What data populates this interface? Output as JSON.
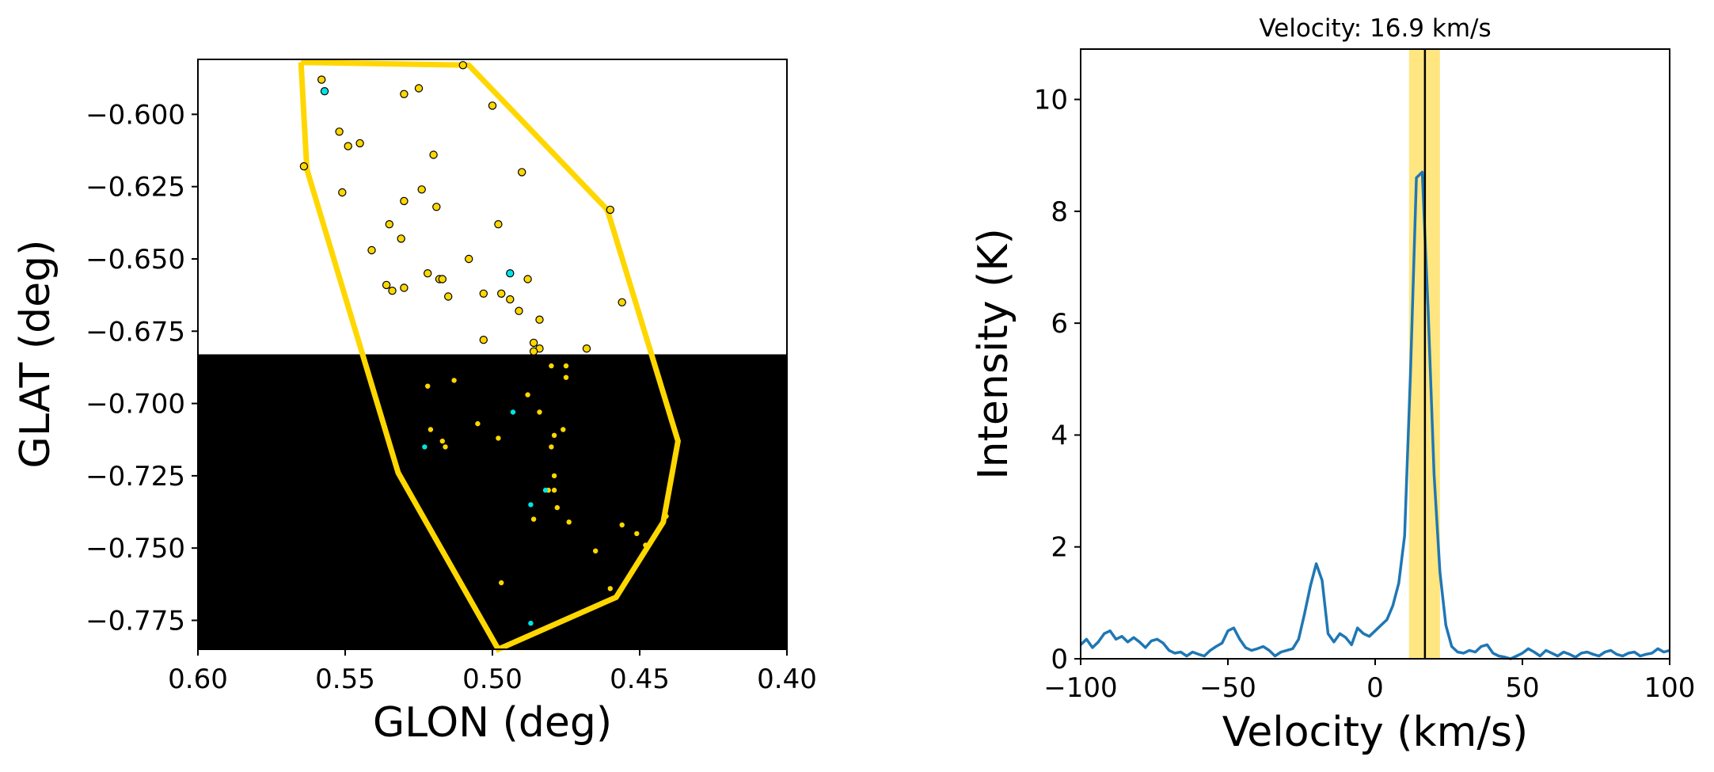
{
  "chart_data": [
    {
      "type": "scatter",
      "xlabel": "GLON (deg)",
      "ylabel": "GLAT (deg)",
      "xlim": [
        0.6,
        0.4
      ],
      "ylim": [
        -0.785,
        -0.581
      ],
      "x_ticks": [
        "0.60",
        "0.55",
        "0.50",
        "0.45",
        "0.40"
      ],
      "x_tick_values": [
        0.6,
        0.55,
        0.5,
        0.45,
        0.4
      ],
      "y_ticks": [
        "−0.600",
        "−0.625",
        "−0.650",
        "−0.675",
        "−0.700",
        "−0.725",
        "−0.750",
        "−0.775"
      ],
      "y_tick_values": [
        -0.6,
        -0.625,
        -0.65,
        -0.675,
        -0.7,
        -0.725,
        -0.75,
        -0.775
      ],
      "image_background": {
        "dark_region_ylim": [
          -0.785,
          -0.683
        ],
        "dark_color": "#000000"
      },
      "polygon": {
        "color": "#ffd700",
        "points": [
          [
            0.565,
            -0.582
          ],
          [
            0.508,
            -0.583
          ],
          [
            0.461,
            -0.633
          ],
          [
            0.437,
            -0.713
          ],
          [
            0.442,
            -0.741
          ],
          [
            0.458,
            -0.767
          ],
          [
            0.498,
            -0.785
          ],
          [
            0.532,
            -0.724
          ],
          [
            0.563,
            -0.619
          ],
          [
            0.565,
            -0.582
          ]
        ]
      },
      "series": [
        {
          "color": "#ffd700",
          "points": [
            [
              0.558,
              -0.588
            ],
            [
              0.53,
              -0.593
            ],
            [
              0.525,
              -0.591
            ],
            [
              0.51,
              -0.583
            ],
            [
              0.5,
              -0.597
            ],
            [
              0.552,
              -0.606
            ],
            [
              0.549,
              -0.611
            ],
            [
              0.545,
              -0.61
            ],
            [
              0.52,
              -0.614
            ],
            [
              0.564,
              -0.618
            ],
            [
              0.49,
              -0.62
            ],
            [
              0.551,
              -0.627
            ],
            [
              0.53,
              -0.63
            ],
            [
              0.524,
              -0.626
            ],
            [
              0.519,
              -0.632
            ],
            [
              0.46,
              -0.633
            ],
            [
              0.535,
              -0.638
            ],
            [
              0.498,
              -0.638
            ],
            [
              0.531,
              -0.643
            ],
            [
              0.541,
              -0.647
            ],
            [
              0.508,
              -0.65
            ],
            [
              0.522,
              -0.655
            ],
            [
              0.518,
              -0.657
            ],
            [
              0.517,
              -0.657
            ],
            [
              0.488,
              -0.657
            ],
            [
              0.536,
              -0.659
            ],
            [
              0.534,
              -0.661
            ],
            [
              0.53,
              -0.66
            ],
            [
              0.515,
              -0.663
            ],
            [
              0.503,
              -0.662
            ],
            [
              0.497,
              -0.662
            ],
            [
              0.494,
              -0.664
            ],
            [
              0.491,
              -0.668
            ],
            [
              0.456,
              -0.665
            ],
            [
              0.484,
              -0.671
            ],
            [
              0.503,
              -0.678
            ],
            [
              0.486,
              -0.679
            ],
            [
              0.484,
              -0.681
            ],
            [
              0.486,
              -0.682
            ],
            [
              0.468,
              -0.681
            ],
            [
              0.48,
              -0.687
            ],
            [
              0.475,
              -0.687
            ],
            [
              0.475,
              -0.691
            ],
            [
              0.488,
              -0.697
            ],
            [
              0.522,
              -0.694
            ],
            [
              0.513,
              -0.692
            ],
            [
              0.484,
              -0.703
            ],
            [
              0.505,
              -0.707
            ],
            [
              0.498,
              -0.712
            ],
            [
              0.521,
              -0.709
            ],
            [
              0.517,
              -0.713
            ],
            [
              0.516,
              -0.715
            ],
            [
              0.479,
              -0.711
            ],
            [
              0.476,
              -0.709
            ],
            [
              0.48,
              -0.715
            ],
            [
              0.479,
              -0.725
            ],
            [
              0.481,
              -0.73
            ],
            [
              0.479,
              -0.73
            ],
            [
              0.478,
              -0.736
            ],
            [
              0.486,
              -0.74
            ],
            [
              0.474,
              -0.741
            ],
            [
              0.456,
              -0.742
            ],
            [
              0.451,
              -0.745
            ],
            [
              0.448,
              -0.749
            ],
            [
              0.441,
              -0.739
            ],
            [
              0.465,
              -0.751
            ],
            [
              0.46,
              -0.764
            ],
            [
              0.497,
              -0.762
            ]
          ]
        },
        {
          "color": "#00e5e5",
          "points": [
            [
              0.557,
              -0.592
            ],
            [
              0.494,
              -0.655
            ],
            [
              0.493,
              -0.703
            ],
            [
              0.523,
              -0.715
            ],
            [
              0.482,
              -0.73
            ],
            [
              0.487,
              -0.735
            ],
            [
              0.487,
              -0.776
            ]
          ]
        }
      ]
    },
    {
      "type": "line",
      "title": "Velocity: 16.9 km/s",
      "xlabel": "Velocity (km/s)",
      "ylabel": "Intensity (K)",
      "xlim": [
        -100,
        100
      ],
      "ylim": [
        0,
        10.9
      ],
      "x_ticks": [
        "−100",
        "−50",
        "0",
        "50",
        "100"
      ],
      "x_tick_values": [
        -100,
        -50,
        0,
        50,
        100
      ],
      "y_ticks": [
        "0",
        "2",
        "4",
        "6",
        "8",
        "10"
      ],
      "y_tick_values": [
        0,
        2,
        4,
        6,
        8,
        10
      ],
      "highlight_band": {
        "x": [
          11.5,
          22.0
        ],
        "color": "#ffe680"
      },
      "marker_line": {
        "x": 16.9,
        "color": "#000000"
      },
      "series": [
        {
          "color": "#1f77b4",
          "x": [
            -100,
            -98,
            -96,
            -94,
            -92,
            -90,
            -88,
            -86,
            -84,
            -82,
            -80,
            -78,
            -76,
            -74,
            -72,
            -70,
            -68,
            -66,
            -64,
            -62,
            -60,
            -58,
            -56,
            -54,
            -52,
            -50,
            -48,
            -46,
            -44,
            -42,
            -40,
            -38,
            -36,
            -34,
            -32,
            -30,
            -28,
            -26,
            -24,
            -22,
            -20,
            -18,
            -16,
            -14,
            -12,
            -10,
            -8,
            -6,
            -4,
            -2,
            0,
            2,
            4,
            6,
            8,
            10,
            12,
            14,
            16,
            18,
            20,
            22,
            24,
            26,
            28,
            30,
            32,
            34,
            36,
            38,
            40,
            42,
            44,
            46,
            48,
            50,
            52,
            54,
            56,
            58,
            60,
            62,
            64,
            66,
            68,
            70,
            72,
            74,
            76,
            78,
            80,
            82,
            84,
            86,
            88,
            90,
            92,
            94,
            96,
            98,
            100
          ],
          "y": [
            0.25,
            0.35,
            0.2,
            0.3,
            0.45,
            0.5,
            0.35,
            0.4,
            0.3,
            0.38,
            0.3,
            0.2,
            0.32,
            0.35,
            0.28,
            0.15,
            0.1,
            0.12,
            0.05,
            0.12,
            0.08,
            0.05,
            0.15,
            0.22,
            0.28,
            0.5,
            0.55,
            0.35,
            0.2,
            0.15,
            0.18,
            0.22,
            0.15,
            0.05,
            0.12,
            0.15,
            0.18,
            0.35,
            0.8,
            1.3,
            1.7,
            1.4,
            0.45,
            0.3,
            0.45,
            0.38,
            0.25,
            0.55,
            0.45,
            0.4,
            0.5,
            0.6,
            0.7,
            0.95,
            1.35,
            2.2,
            5.1,
            8.6,
            8.7,
            6.2,
            3.3,
            1.55,
            0.6,
            0.22,
            0.12,
            0.1,
            0.15,
            0.12,
            0.22,
            0.25,
            0.1,
            0.05,
            0.03,
            0.0,
            0.05,
            0.1,
            0.18,
            0.12,
            0.05,
            0.15,
            0.1,
            0.05,
            0.12,
            0.08,
            0.03,
            0.1,
            0.12,
            0.08,
            0.05,
            0.12,
            0.15,
            0.08,
            0.05,
            0.1,
            0.12,
            0.05,
            0.08,
            0.1,
            0.18,
            0.12,
            0.15
          ]
        }
      ]
    }
  ]
}
